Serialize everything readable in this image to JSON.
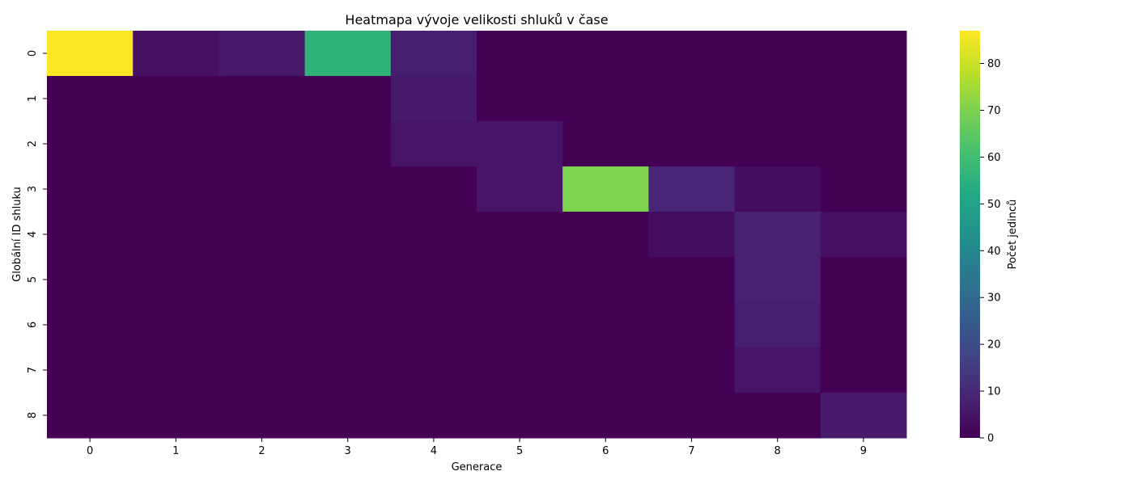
{
  "chart_data": {
    "type": "heatmap",
    "title": "Heatmapa vývoje velikosti shluků v čase",
    "xlabel": "Generace",
    "ylabel": "Globální ID shluku",
    "x_categories": [
      "0",
      "1",
      "2",
      "3",
      "4",
      "5",
      "6",
      "7",
      "8",
      "9"
    ],
    "y_categories": [
      "0",
      "1",
      "2",
      "3",
      "4",
      "5",
      "6",
      "7",
      "8"
    ],
    "values": [
      [
        87,
        4,
        6,
        56,
        7,
        0,
        0,
        0,
        0,
        0
      ],
      [
        0,
        0,
        0,
        0,
        6,
        0,
        0,
        0,
        0,
        0
      ],
      [
        0,
        0,
        0,
        0,
        5,
        5,
        0,
        0,
        0,
        0
      ],
      [
        0,
        0,
        0,
        0,
        0,
        5,
        70,
        9,
        3,
        0
      ],
      [
        0,
        0,
        0,
        0,
        0,
        0,
        0,
        3,
        8,
        4
      ],
      [
        0,
        0,
        0,
        0,
        0,
        0,
        0,
        0,
        8,
        0
      ],
      [
        0,
        0,
        0,
        0,
        0,
        0,
        0,
        0,
        7,
        0
      ],
      [
        0,
        0,
        0,
        0,
        0,
        0,
        0,
        0,
        5,
        0
      ],
      [
        0,
        0,
        0,
        0,
        0,
        0,
        0,
        0,
        0,
        6
      ]
    ],
    "colormap": "viridis",
    "vmin": 0,
    "vmax": 87,
    "colorbar": {
      "label": "Počet jedinců",
      "ticks": [
        0,
        10,
        20,
        30,
        40,
        50,
        60,
        70,
        80
      ]
    },
    "grid": false
  }
}
